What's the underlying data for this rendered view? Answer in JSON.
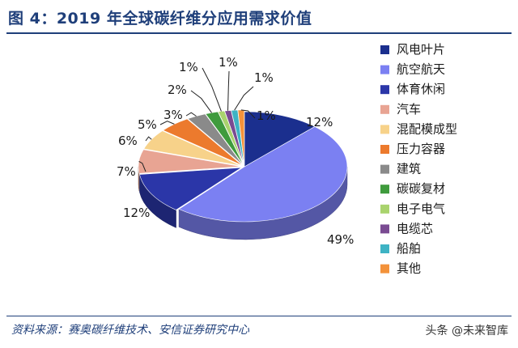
{
  "header": {
    "title": "图 4：2019 年全球碳纤维分应用需求价值"
  },
  "chart_data": {
    "type": "pie",
    "title": "图 4：2019 年全球碳纤维分应用需求价值",
    "categories": [
      "风电叶片",
      "航空航天",
      "体育休闲",
      "汽车",
      "混配模成型",
      "压力容器",
      "建筑",
      "碳碳复材",
      "电子电气",
      "电缆芯",
      "船舶",
      "其他"
    ],
    "values": [
      12,
      49,
      12,
      7,
      6,
      5,
      3,
      2,
      1,
      1,
      1,
      1
    ],
    "labels": [
      "12%",
      "49%",
      "12%",
      "7%",
      "6%",
      "5%",
      "3%",
      "2%",
      "1%",
      "1%",
      "1%",
      "1%"
    ],
    "colors": [
      "#1b2f8e",
      "#7b80f2",
      "#2b36a8",
      "#e8a493",
      "#f7d28a",
      "#ec7a2d",
      "#8a8a8a",
      "#3f9b3d",
      "#a9d36d",
      "#7a4b92",
      "#3eb3c4",
      "#f3923a"
    ],
    "legend_position": "right",
    "style": "3d-exploded"
  },
  "footer": {
    "source": "资料来源：赛奥碳纤维技术、安信证券研究中心",
    "watermark": "头条 @未来智库"
  }
}
